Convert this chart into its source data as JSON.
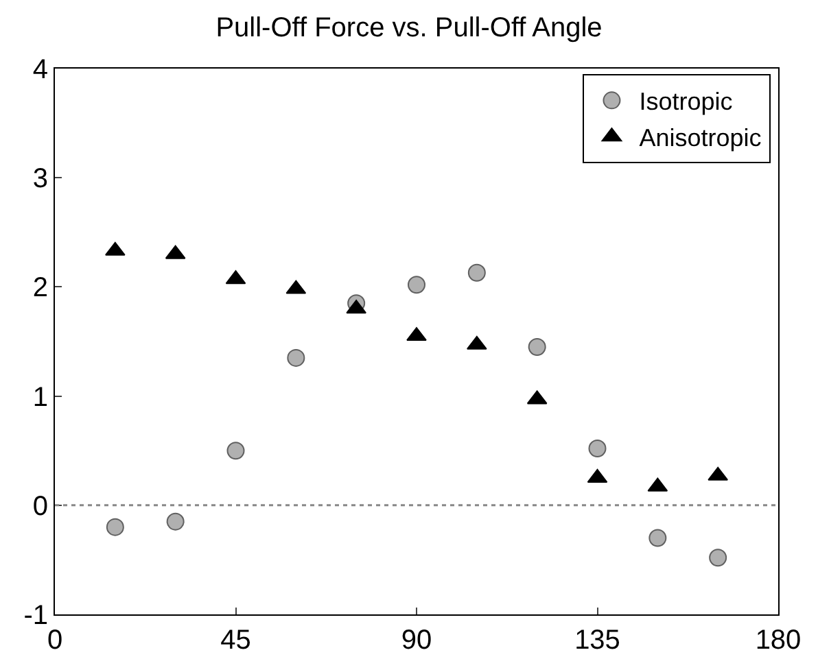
{
  "chart_data": {
    "type": "scatter",
    "title": "Pull-Off Force vs. Pull-Off Angle",
    "x": [
      15,
      30,
      45,
      60,
      75,
      90,
      105,
      120,
      135,
      150,
      165
    ],
    "series": [
      {
        "name": "Isotropic",
        "color": "#b0b0b0",
        "marker": "circle",
        "values": [
          -0.2,
          -0.15,
          0.5,
          1.35,
          1.85,
          2.02,
          2.13,
          1.45,
          0.52,
          -0.3,
          -0.48
        ]
      },
      {
        "name": "Anisotropic",
        "color": "#000000",
        "marker": "triangle",
        "values": [
          2.33,
          2.3,
          2.07,
          1.98,
          1.8,
          1.55,
          1.47,
          0.97,
          0.25,
          0.17,
          0.27
        ]
      }
    ],
    "xlim": [
      0,
      180
    ],
    "xticks": [
      0,
      45,
      90,
      135,
      180
    ],
    "ylim": [
      -1,
      4
    ],
    "yticks": [
      -1,
      0,
      1,
      2,
      3,
      4
    ],
    "ref_lines": [
      {
        "axis": "y",
        "value": 0,
        "color": "#888888",
        "line_style": "dotted"
      }
    ],
    "legend": "top right"
  }
}
